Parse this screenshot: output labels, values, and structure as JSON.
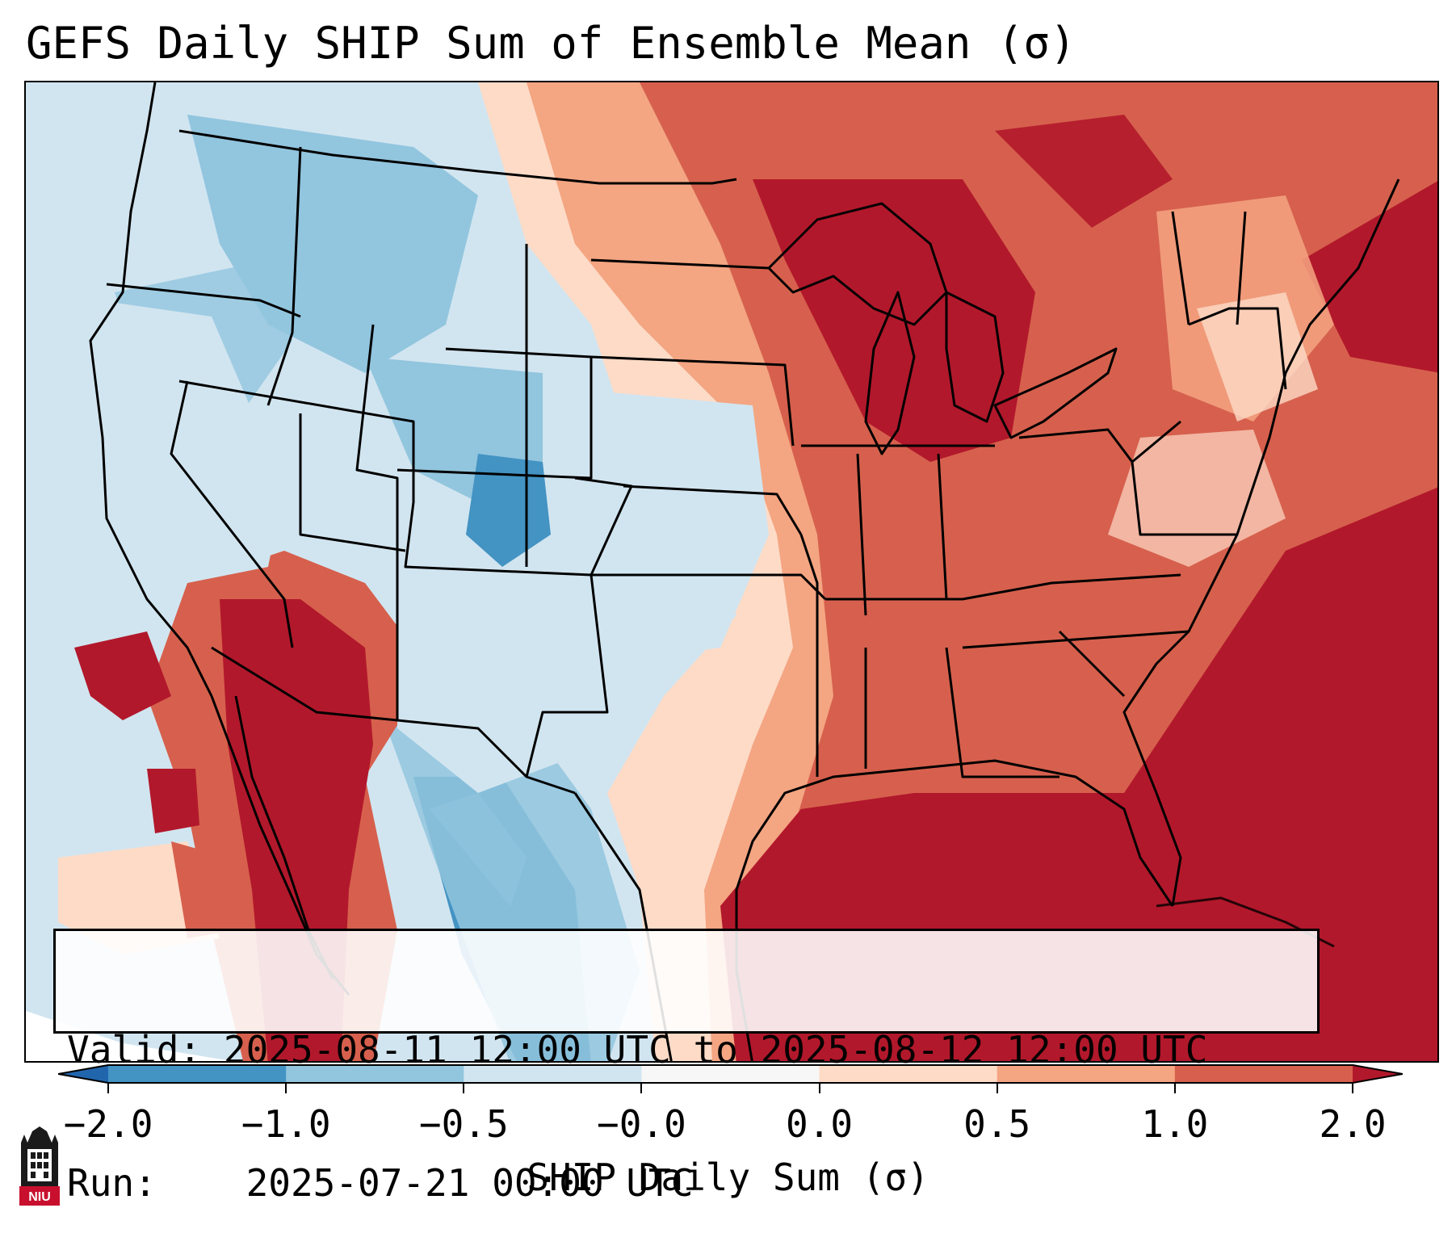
{
  "title": "GEFS Daily SHIP Sum of Ensemble Mean (σ)",
  "info": {
    "valid_label": "Valid:",
    "valid_value": "2025-08-11 12:00 UTC to 2025-08-12 12:00 UTC",
    "run_label": "Run:",
    "run_value": "2025-07-21 00:00 UTC"
  },
  "colorbar": {
    "label": "SHIP Daily Sum (σ)",
    "ticks": [
      "−2.0",
      "−1.0",
      "−0.5",
      "−0.0",
      "0.0",
      "0.5",
      "1.0",
      "2.0"
    ],
    "colors": [
      "#2166ac",
      "#4393c3",
      "#92c5de",
      "#d1e5f0",
      "#f7f7f7",
      "#fddbc7",
      "#f4a582",
      "#d6604d",
      "#b2182b"
    ],
    "extend": "both"
  },
  "logo": {
    "text": "NIU",
    "icon": "niu-logo-icon"
  }
}
